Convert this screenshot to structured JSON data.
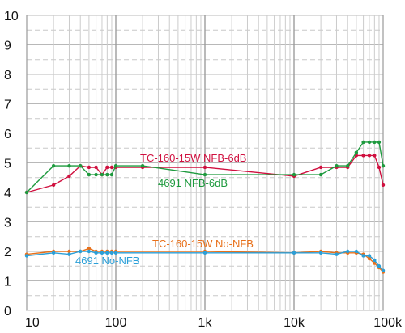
{
  "chart_data": {
    "type": "line",
    "title": "",
    "xlabel": "",
    "ylabel": "",
    "x_scale": "log",
    "xlim": [
      10,
      100000
    ],
    "ylim": [
      0,
      10
    ],
    "grid": true,
    "x_tick_labels": [
      "10",
      "100",
      "1k",
      "10k",
      "100k"
    ],
    "y_tick_labels": [
      "0",
      "1",
      "2",
      "3",
      "4",
      "5",
      "6",
      "7",
      "8",
      "9",
      "10"
    ],
    "series": [
      {
        "name": "TC-160-15W NFB-6dB",
        "color": "#d0103f",
        "x": [
          10,
          20,
          30,
          40,
          50,
          60,
          70,
          80,
          90,
          100,
          200,
          1000,
          10000,
          20000,
          30000,
          40000,
          50000,
          60000,
          70000,
          80000,
          90000,
          100000
        ],
        "y": [
          4.0,
          4.25,
          4.55,
          4.9,
          4.85,
          4.85,
          4.6,
          4.85,
          4.85,
          4.85,
          4.85,
          4.85,
          4.55,
          4.85,
          4.85,
          4.85,
          5.25,
          5.25,
          5.25,
          5.25,
          4.85,
          4.25
        ]
      },
      {
        "name": "4691 NFB-6dB",
        "color": "#1e9a3e",
        "x": [
          10,
          20,
          30,
          40,
          50,
          60,
          70,
          80,
          90,
          100,
          200,
          1000,
          10000,
          20000,
          30000,
          40000,
          50000,
          60000,
          70000,
          80000,
          90000,
          100000
        ],
        "y": [
          4.0,
          4.9,
          4.9,
          4.9,
          4.6,
          4.6,
          4.6,
          4.6,
          4.6,
          4.9,
          4.9,
          4.6,
          4.6,
          4.6,
          4.9,
          4.9,
          5.35,
          5.7,
          5.7,
          5.7,
          5.7,
          4.9
        ]
      },
      {
        "name": "TC-160-15W No-NFB",
        "color": "#e8701a",
        "x": [
          10,
          20,
          30,
          40,
          50,
          60,
          70,
          80,
          90,
          100,
          1000,
          10000,
          20000,
          30000,
          40000,
          50000,
          60000,
          70000,
          80000,
          90000,
          100000
        ],
        "y": [
          1.9,
          2.0,
          2.0,
          2.0,
          2.1,
          2.0,
          2.0,
          2.0,
          2.0,
          2.0,
          2.0,
          1.95,
          2.0,
          1.95,
          1.95,
          1.95,
          1.9,
          1.75,
          1.6,
          1.45,
          1.3
        ]
      },
      {
        "name": "4691 No-NFB",
        "color": "#2a9fd8",
        "x": [
          10,
          20,
          30,
          40,
          50,
          60,
          70,
          80,
          90,
          100,
          1000,
          10000,
          20000,
          30000,
          40000,
          50000,
          60000,
          70000,
          80000,
          90000,
          100000
        ],
        "y": [
          1.85,
          1.95,
          1.9,
          2.0,
          2.0,
          1.95,
          1.95,
          1.95,
          1.95,
          1.95,
          1.95,
          1.95,
          1.95,
          1.9,
          2.0,
          2.0,
          1.85,
          1.85,
          1.7,
          1.5,
          1.35
        ]
      }
    ]
  }
}
